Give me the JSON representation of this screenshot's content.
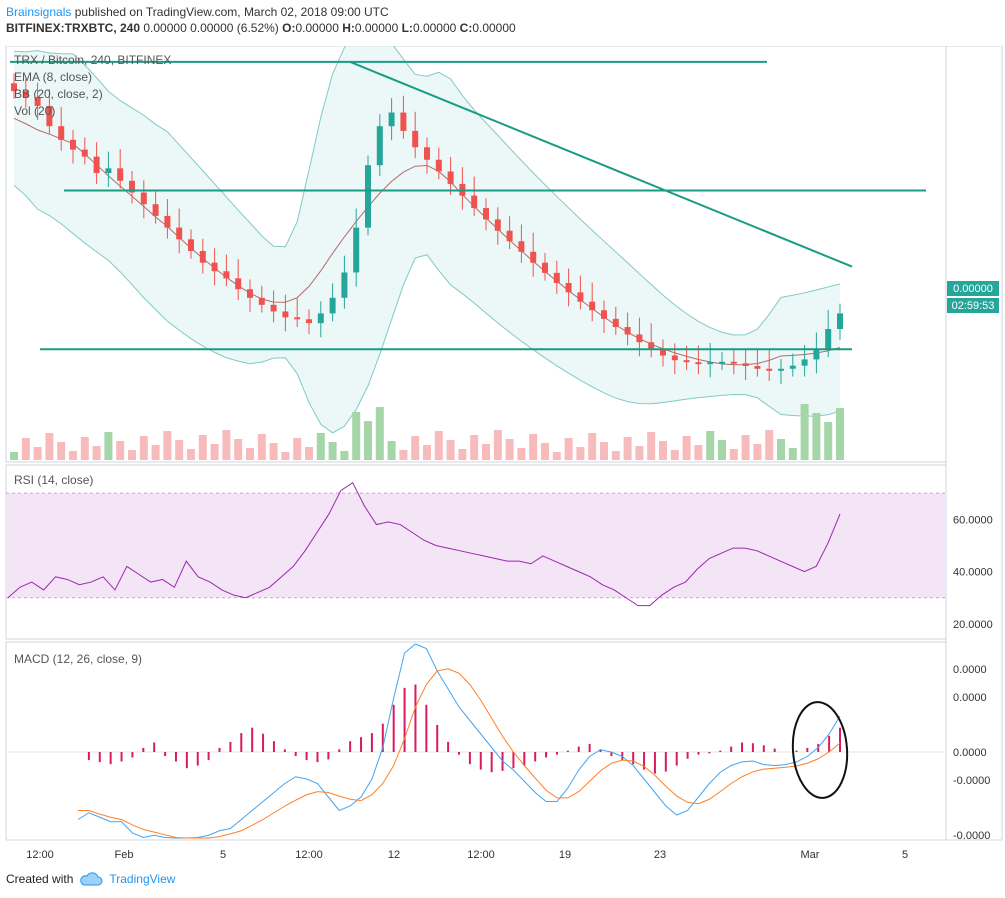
{
  "header": {
    "author": "Brainsignals",
    "published": "published on TradingView.com, March 02, 2018 09:00 UTC",
    "symbol": "BITFINEX:TRXBTC, 240",
    "quote": "0.00000 0.00000 (6.52%)",
    "o": "0.00000",
    "h": "0.00000",
    "l": "0.00000",
    "c": "0.00000"
  },
  "legends": {
    "main": [
      "TRX / Bitcoin, 240, BITFINEX",
      "EMA (8, close)",
      "BB (20, close, 2)",
      "Vol (20)"
    ],
    "rsi": "RSI (14, close)",
    "macd": "MACD (12, 26, close, 9)"
  },
  "price_tags": {
    "last": "0.00000",
    "countdown": "02:59:53"
  },
  "rsi_axis": [
    "60.0000",
    "40.0000",
    "20.0000"
  ],
  "macd_axis": [
    "0.0000",
    "0.0000",
    "0.0000",
    "-0.0000",
    "-0.0000"
  ],
  "time_axis": [
    "12:00",
    "Feb",
    "5",
    "12:00",
    "12",
    "12:00",
    "19",
    "23",
    "Mar",
    "5"
  ],
  "footer": {
    "created_with": "Created with",
    "brand": "TradingView"
  },
  "colors": {
    "up": "#26a69a",
    "down": "#ef5350",
    "trend": "#1a9c84",
    "rsi": "#9c27b0",
    "rsi_band": "#f3e5f5",
    "macd_hist": "#d81b60",
    "macd": "#42a5f5",
    "signal": "#ff7f27"
  },
  "chart_data": {
    "type": "line",
    "price_series": {
      "name": "TRX / Bitcoin",
      "close": [
        0.91,
        0.895,
        0.872,
        0.82,
        0.785,
        0.76,
        0.742,
        0.7,
        0.712,
        0.68,
        0.65,
        0.62,
        0.59,
        0.56,
        0.53,
        0.5,
        0.47,
        0.448,
        0.43,
        0.402,
        0.38,
        0.362,
        0.345,
        0.33,
        0.325,
        0.315,
        0.34,
        0.38,
        0.445,
        0.56,
        0.72,
        0.82,
        0.855,
        0.808,
        0.766,
        0.734,
        0.704,
        0.672,
        0.642,
        0.61,
        0.581,
        0.552,
        0.525,
        0.498,
        0.47,
        0.444,
        0.418,
        0.394,
        0.37,
        0.348,
        0.326,
        0.305,
        0.286,
        0.266,
        0.248,
        0.232,
        0.22,
        0.215,
        0.212,
        0.215,
        0.216,
        0.212,
        0.205,
        0.198,
        0.195,
        0.198,
        0.206,
        0.222,
        0.248,
        0.3,
        0.34
      ]
    },
    "trendlines": {
      "resistance_high": 0.985,
      "resistance_mid": 0.655,
      "support": 0.248,
      "downtrend_start": 0.985,
      "downtrend_end": 0.46
    },
    "rsi": {
      "name": "RSI (14, close)",
      "band": [
        30,
        70
      ],
      "values": [
        30,
        34,
        36,
        33,
        38,
        37,
        35,
        36,
        38,
        33,
        42,
        39,
        36,
        37,
        34,
        44,
        38,
        36,
        33,
        31,
        30,
        32,
        34,
        38,
        42,
        48,
        55,
        62,
        71,
        74,
        65,
        58,
        59,
        58,
        55,
        52,
        50,
        49,
        48,
        47,
        46,
        45,
        44,
        44,
        43,
        46,
        44,
        42,
        40,
        38,
        35,
        33,
        30,
        27,
        27,
        31,
        34,
        36,
        41,
        45,
        47,
        49,
        49,
        48,
        46,
        44,
        42,
        40,
        42,
        51,
        62
      ]
    },
    "macd": {
      "name": "MACD (12, 26, close, 9)",
      "histogram": [
        0.0,
        -0.12,
        -0.15,
        -0.18,
        -0.14,
        -0.08,
        0.06,
        0.14,
        -0.06,
        -0.14,
        -0.24,
        -0.2,
        -0.12,
        0.06,
        0.15,
        0.28,
        0.36,
        0.27,
        0.16,
        0.04,
        -0.06,
        -0.12,
        -0.15,
        -0.11,
        0.04,
        0.16,
        0.22,
        0.28,
        0.42,
        0.7,
        0.95,
        1.0,
        0.7,
        0.4,
        0.15,
        -0.04,
        -0.18,
        -0.26,
        -0.3,
        -0.28,
        -0.24,
        -0.2,
        -0.14,
        -0.08,
        -0.04,
        0.02,
        0.08,
        0.12,
        0.04,
        -0.06,
        -0.12,
        -0.18,
        -0.26,
        -0.32,
        -0.29,
        -0.2,
        -0.1,
        -0.04,
        -0.02,
        0.02,
        0.08,
        0.14,
        0.13,
        0.1,
        0.05,
        0.0,
        0.02,
        0.06,
        0.12,
        0.24,
        0.36
      ],
      "macd_line": [
        -1.5,
        -1.35,
        -1.45,
        -1.55,
        -1.55,
        -1.8,
        -1.9,
        -1.85,
        -1.9,
        -2.0,
        -1.95,
        -1.9,
        -1.85,
        -1.75,
        -1.7,
        -1.5,
        -1.3,
        -1.1,
        -0.9,
        -0.7,
        -0.55,
        -0.6,
        -0.7,
        -1.0,
        -1.3,
        -1.2,
        -1.0,
        -0.6,
        0.1,
        1.2,
        2.2,
        2.6,
        2.3,
        1.8,
        1.4,
        1.0,
        0.7,
        0.4,
        0.1,
        -0.2,
        -0.4,
        -0.65,
        -0.9,
        -1.1,
        -1.1,
        -0.8,
        -0.4,
        -0.1,
        0.05,
        0.0,
        -0.1,
        -0.3,
        -0.6,
        -0.9,
        -1.2,
        -1.4,
        -1.3,
        -1.0,
        -0.7,
        -0.45,
        -0.3,
        -0.22,
        -0.2,
        -0.28,
        -0.3,
        -0.28,
        -0.22,
        -0.1,
        0.1,
        0.4,
        0.8
      ],
      "signal_line": [
        -1.3,
        -1.3,
        -1.38,
        -1.45,
        -1.5,
        -1.62,
        -1.72,
        -1.78,
        -1.84,
        -1.9,
        -1.92,
        -1.93,
        -1.92,
        -1.88,
        -1.82,
        -1.75,
        -1.63,
        -1.5,
        -1.35,
        -1.2,
        -1.07,
        -0.95,
        -0.88,
        -0.9,
        -0.98,
        -1.05,
        -1.08,
        -0.95,
        -0.7,
        -0.3,
        0.3,
        1.0,
        1.5,
        1.8,
        1.85,
        1.75,
        1.5,
        1.15,
        0.75,
        0.35,
        0.0,
        -0.3,
        -0.58,
        -0.85,
        -1.02,
        -1.02,
        -0.88,
        -0.65,
        -0.42,
        -0.25,
        -0.18,
        -0.2,
        -0.32,
        -0.52,
        -0.76,
        -0.98,
        -1.12,
        -1.15,
        -1.05,
        -0.88,
        -0.7,
        -0.55,
        -0.44,
        -0.38,
        -0.36,
        -0.34,
        -0.31,
        -0.25,
        -0.15,
        0.0,
        0.2
      ]
    }
  }
}
